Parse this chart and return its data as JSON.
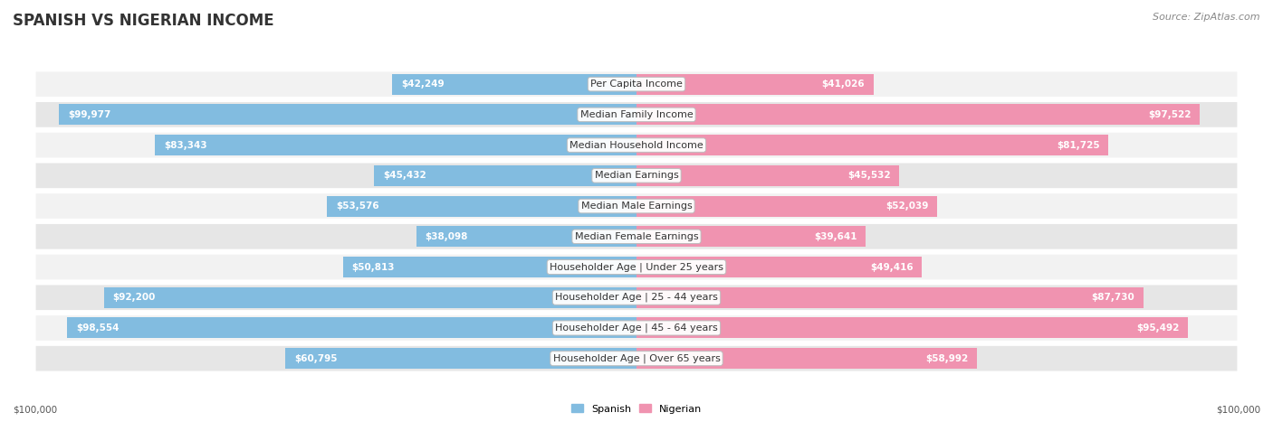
{
  "title": "SPANISH VS NIGERIAN INCOME",
  "source": "Source: ZipAtlas.com",
  "categories": [
    "Per Capita Income",
    "Median Family Income",
    "Median Household Income",
    "Median Earnings",
    "Median Male Earnings",
    "Median Female Earnings",
    "Householder Age | Under 25 years",
    "Householder Age | 25 - 44 years",
    "Householder Age | 45 - 64 years",
    "Householder Age | Over 65 years"
  ],
  "spanish_values": [
    42249,
    99977,
    83343,
    45432,
    53576,
    38098,
    50813,
    92200,
    98554,
    60795
  ],
  "nigerian_values": [
    41026,
    97522,
    81725,
    45532,
    52039,
    39641,
    49416,
    87730,
    95492,
    58992
  ],
  "max_value": 100000,
  "spanish_color": "#82bce0",
  "nigerian_color": "#f093b0",
  "nigerian_color_dark": "#e8638a",
  "spanish_color_dark": "#5a9ec8",
  "row_bg_odd": "#f2f2f2",
  "row_bg_even": "#e6e6e6",
  "title_fontsize": 12,
  "source_fontsize": 8,
  "label_fontsize": 8,
  "value_fontsize": 7.5,
  "axis_label": "$100,000",
  "legend_spanish": "Spanish",
  "legend_nigerian": "Nigerian",
  "label_inside_threshold": 0.3
}
